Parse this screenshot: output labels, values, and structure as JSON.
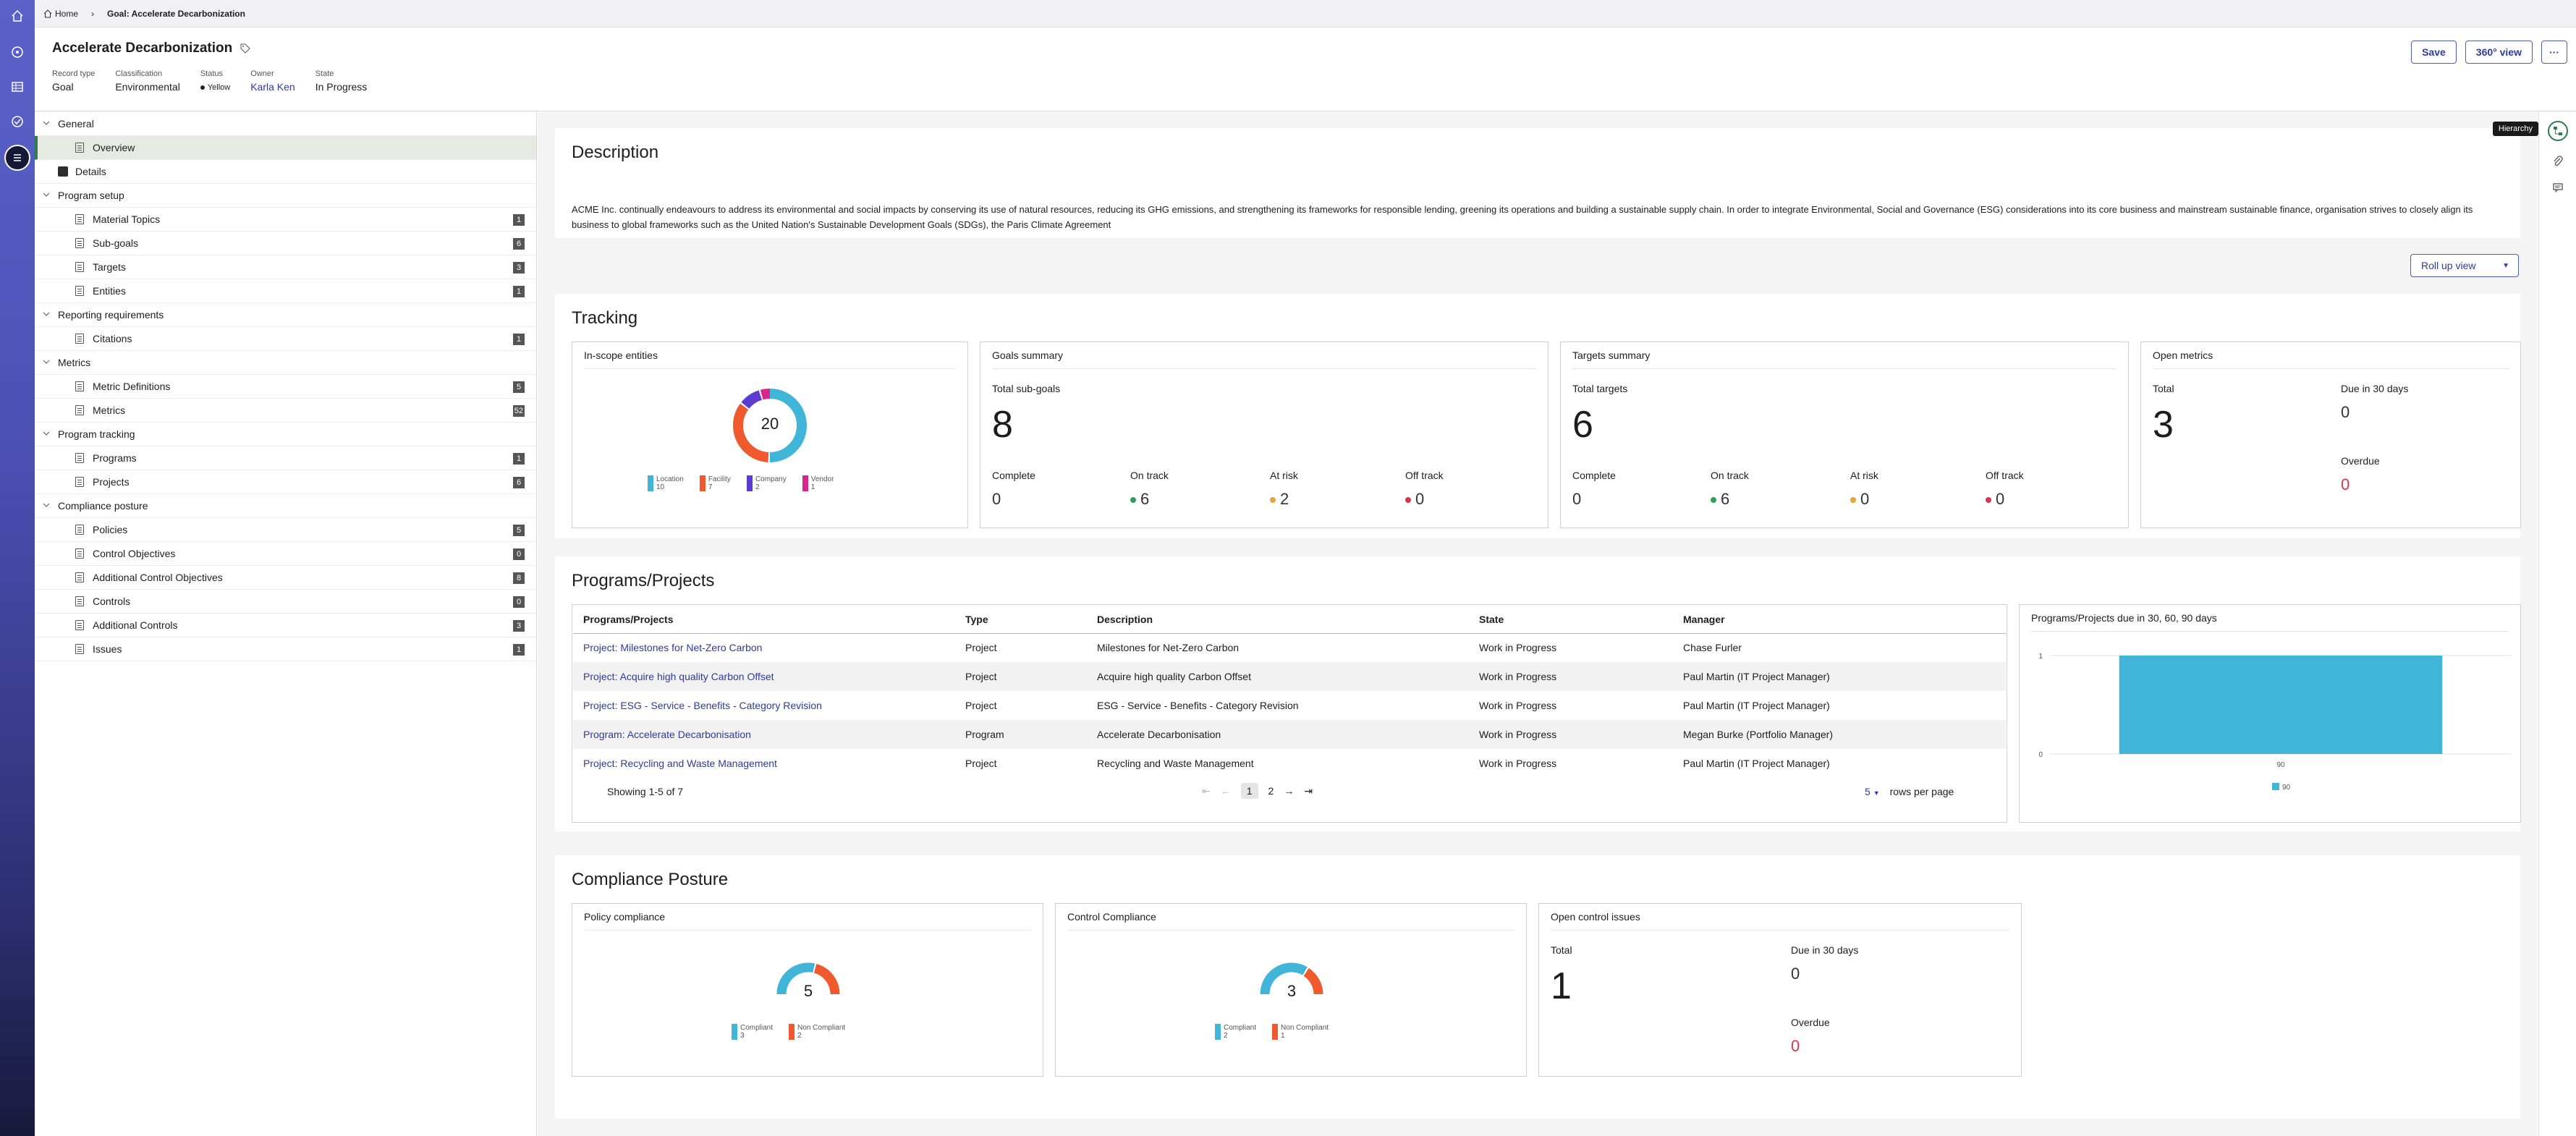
{
  "breadcrumb": {
    "home": "Home",
    "current": "Goal: Accelerate Decarbonization"
  },
  "header": {
    "title": "Accelerate Decarbonization",
    "fields": [
      {
        "label": "Record type",
        "value": "Goal"
      },
      {
        "label": "Classification",
        "value": "Environmental"
      },
      {
        "label": "Status",
        "value": "Yellow"
      },
      {
        "label": "Owner",
        "value": "Karla Ken"
      },
      {
        "label": "State",
        "value": "In Progress"
      }
    ],
    "save": "Save",
    "view360": "360° view",
    "more": "···"
  },
  "tooltip": "Hierarchy",
  "nav": {
    "general": "General",
    "overview": "Overview",
    "details": "Details",
    "program_setup": "Program setup",
    "material_topics": {
      "label": "Material Topics",
      "count": "1"
    },
    "sub_goals": {
      "label": "Sub-goals",
      "count": "6"
    },
    "targets": {
      "label": "Targets",
      "count": "3"
    },
    "entities": {
      "label": "Entities",
      "count": "1"
    },
    "reporting": "Reporting requirements",
    "citations": {
      "label": "Citations",
      "count": "1"
    },
    "metrics_grp": "Metrics",
    "metric_definitions": {
      "label": "Metric Definitions",
      "count": "5"
    },
    "metrics": {
      "label": "Metrics",
      "count": "52"
    },
    "program_tracking": "Program tracking",
    "programs": {
      "label": "Programs",
      "count": "1"
    },
    "projects": {
      "label": "Projects",
      "count": "6"
    },
    "compliance": "Compliance posture",
    "policies": {
      "label": "Policies",
      "count": "5"
    },
    "control_objectives": {
      "label": "Control Objectives",
      "count": "0"
    },
    "additional_control_objectives": {
      "label": "Additional Control Objectives",
      "count": "8"
    },
    "controls": {
      "label": "Controls",
      "count": "0"
    },
    "additional_controls": {
      "label": "Additional Controls",
      "count": "3"
    },
    "issues": {
      "label": "Issues",
      "count": "1"
    }
  },
  "description": {
    "heading": "Description",
    "text": "ACME Inc. continually endeavours to address its environmental and social impacts by conserving its use of natural resources, reducing its GHG emissions, and strengthening its frameworks for responsible lending, greening its operations and building a sustainable supply chain. In order to integrate Environmental, Social and Governance (ESG) considerations into its core business and mainstream sustainable finance, organisation strives to closely align its business to global frameworks such as the United Nation's Sustainable Development Goals (SDGs), the Paris Climate Agreement"
  },
  "rollup": "Roll up view",
  "tracking": {
    "heading": "Tracking",
    "inscope": {
      "title": "In-scope entities",
      "total": "20",
      "legend": [
        {
          "name": "Location",
          "value": "10",
          "color": "#40b5d8"
        },
        {
          "name": "Facility",
          "value": "7",
          "color": "#ee5a2e"
        },
        {
          "name": "Company",
          "value": "2",
          "color": "#5b3ccf"
        },
        {
          "name": "Vendor",
          "value": "1",
          "color": "#d9268a"
        }
      ]
    },
    "goals": {
      "title": "Goals summary",
      "total_label": "Total sub-goals",
      "total": "8",
      "complete_label": "Complete",
      "complete": "0",
      "ontrack_label": "On track",
      "ontrack": "6",
      "atrisk_label": "At risk",
      "atrisk": "2",
      "offtrack_label": "Off track",
      "offtrack": "0"
    },
    "targets": {
      "title": "Targets summary",
      "total_label": "Total targets",
      "total": "6",
      "complete_label": "Complete",
      "complete": "0",
      "ontrack_label": "On track",
      "ontrack": "6",
      "atrisk_label": "At risk",
      "atrisk": "0",
      "offtrack_label": "Off track",
      "offtrack": "0"
    },
    "metrics": {
      "title": "Open metrics",
      "total_label": "Total",
      "total": "3",
      "due_label": "Due in 30 days",
      "due": "0",
      "overdue_label": "Overdue",
      "overdue": "0"
    }
  },
  "programs": {
    "heading": "Programs/Projects",
    "columns": [
      "Programs/Projects",
      "Type",
      "Description",
      "State",
      "Manager"
    ],
    "rows": [
      [
        "Project: Milestones for Net-Zero Carbon",
        "Project",
        "Milestones for Net-Zero Carbon",
        "Work in Progress",
        "Chase Furler"
      ],
      [
        "Project: Acquire high quality Carbon Offset",
        "Project",
        "Acquire high quality Carbon Offset",
        "Work in Progress",
        "Paul Martin (IT Project Manager)"
      ],
      [
        "Project: ESG - Service - Benefits - Category Revision",
        "Project",
        "ESG - Service - Benefits - Category Revision",
        "Work in Progress",
        "Paul Martin (IT Project Manager)"
      ],
      [
        "Program: Accelerate Decarbonisation",
        "Program",
        "Accelerate Decarbonisation",
        "Work in Progress",
        "Megan Burke (Portfolio Manager)"
      ],
      [
        "Project: Recycling and Waste Management",
        "Project",
        "Recycling and Waste Management",
        "Work in Progress",
        "Paul Martin (IT Project Manager)"
      ]
    ],
    "showing": "Showing 1-5 of 7",
    "pages": [
      "1",
      "2"
    ],
    "per_page": "5",
    "per_page_label": "rows per page"
  },
  "due_chart_title": "Programs/Projects due in 30, 60, 90 days",
  "chart_data": {
    "type": "bar",
    "categories": [
      "90"
    ],
    "series": [
      {
        "name": "90",
        "values": [
          1
        ]
      }
    ],
    "yticks": [
      "1",
      "0"
    ],
    "ylim": [
      0,
      1
    ],
    "color": "#40b5d8"
  },
  "compliance": {
    "heading": "Compliance Posture",
    "policy": {
      "title": "Policy compliance",
      "total": "5",
      "legend": [
        {
          "name": "Compliant",
          "value": "3",
          "color": "#40b5d8"
        },
        {
          "name": "Non Compliant",
          "value": "2",
          "color": "#ee5a2e"
        }
      ]
    },
    "control": {
      "title": "Control Compliance",
      "total": "3",
      "legend": [
        {
          "name": "Compliant",
          "value": "2",
          "color": "#40b5d8"
        },
        {
          "name": "Non Compliant",
          "value": "1",
          "color": "#ee5a2e"
        }
      ]
    },
    "issues": {
      "title": "Open control issues",
      "total_label": "Total",
      "total": "1",
      "due_label": "Due in 30 days",
      "due": "0",
      "overdue_label": "Overdue",
      "overdue": "0"
    }
  }
}
